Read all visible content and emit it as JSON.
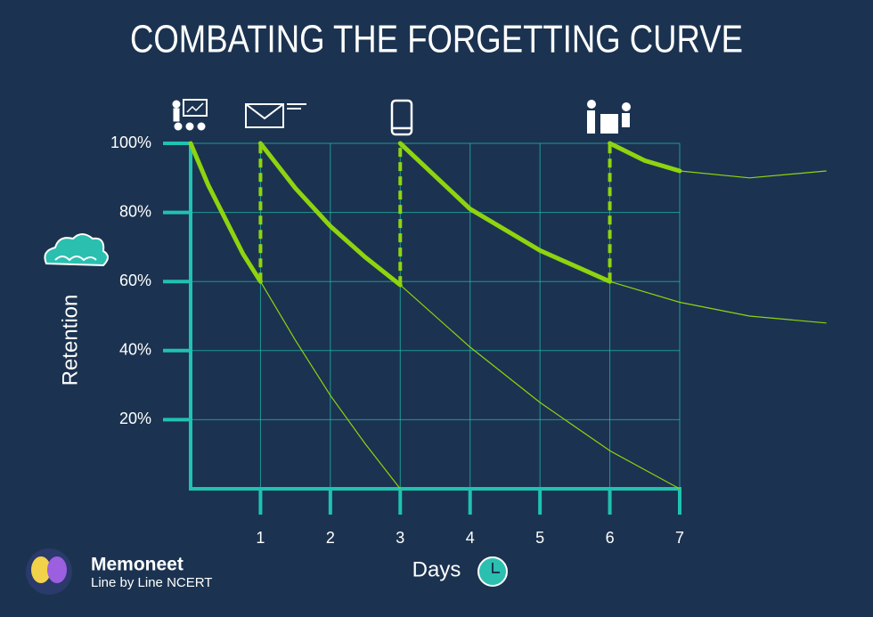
{
  "chart_data": {
    "type": "line",
    "title": "COMBATING THE FORGETTING CURVE",
    "x_label": "Days",
    "y_label": "Retention",
    "brand": "Memoneet",
    "tagline": "Line by Line NCERT",
    "xlim": [
      0,
      7
    ],
    "ylim": [
      0,
      100
    ],
    "xticks": [
      1,
      2,
      3,
      4,
      5,
      6,
      7
    ],
    "yticks": [
      {
        "value": 20,
        "label": "20%"
      },
      {
        "value": 40,
        "label": "40%"
      },
      {
        "value": 60,
        "label": "60%"
      },
      {
        "value": 80,
        "label": "80%"
      },
      {
        "value": 100,
        "label": "100%"
      }
    ],
    "grid": true,
    "series": [
      {
        "color": "#8ed40f",
        "x": [
          0,
          0.25,
          0.5,
          0.75,
          1
        ],
        "values": [
          100,
          88,
          78,
          68,
          60
        ],
        "decay_x": [
          1,
          1.5,
          2,
          2.5,
          3
        ],
        "decay_values": [
          60,
          43,
          27,
          13,
          0
        ]
      },
      {
        "color": "#8ed40f",
        "x": [
          1,
          1.5,
          2,
          2.5,
          3
        ],
        "values": [
          100,
          87,
          76,
          67,
          59
        ],
        "decay_x": [
          3,
          4,
          5,
          6,
          7
        ],
        "decay_values": [
          59,
          41,
          25,
          11,
          0
        ]
      },
      {
        "color": "#8ed40f",
        "x": [
          3,
          4,
          5,
          6
        ],
        "values": [
          100,
          81,
          69,
          60
        ],
        "decay_x": [
          6,
          7,
          8,
          9.1
        ],
        "decay_values": [
          60,
          54,
          50,
          48
        ]
      },
      {
        "color": "#8ed40f",
        "x": [
          6,
          6.5,
          7
        ],
        "values": [
          100,
          95,
          92
        ],
        "decay_x": [
          7,
          8,
          9.1
        ],
        "decay_values": [
          92,
          90,
          92
        ]
      }
    ]
  }
}
